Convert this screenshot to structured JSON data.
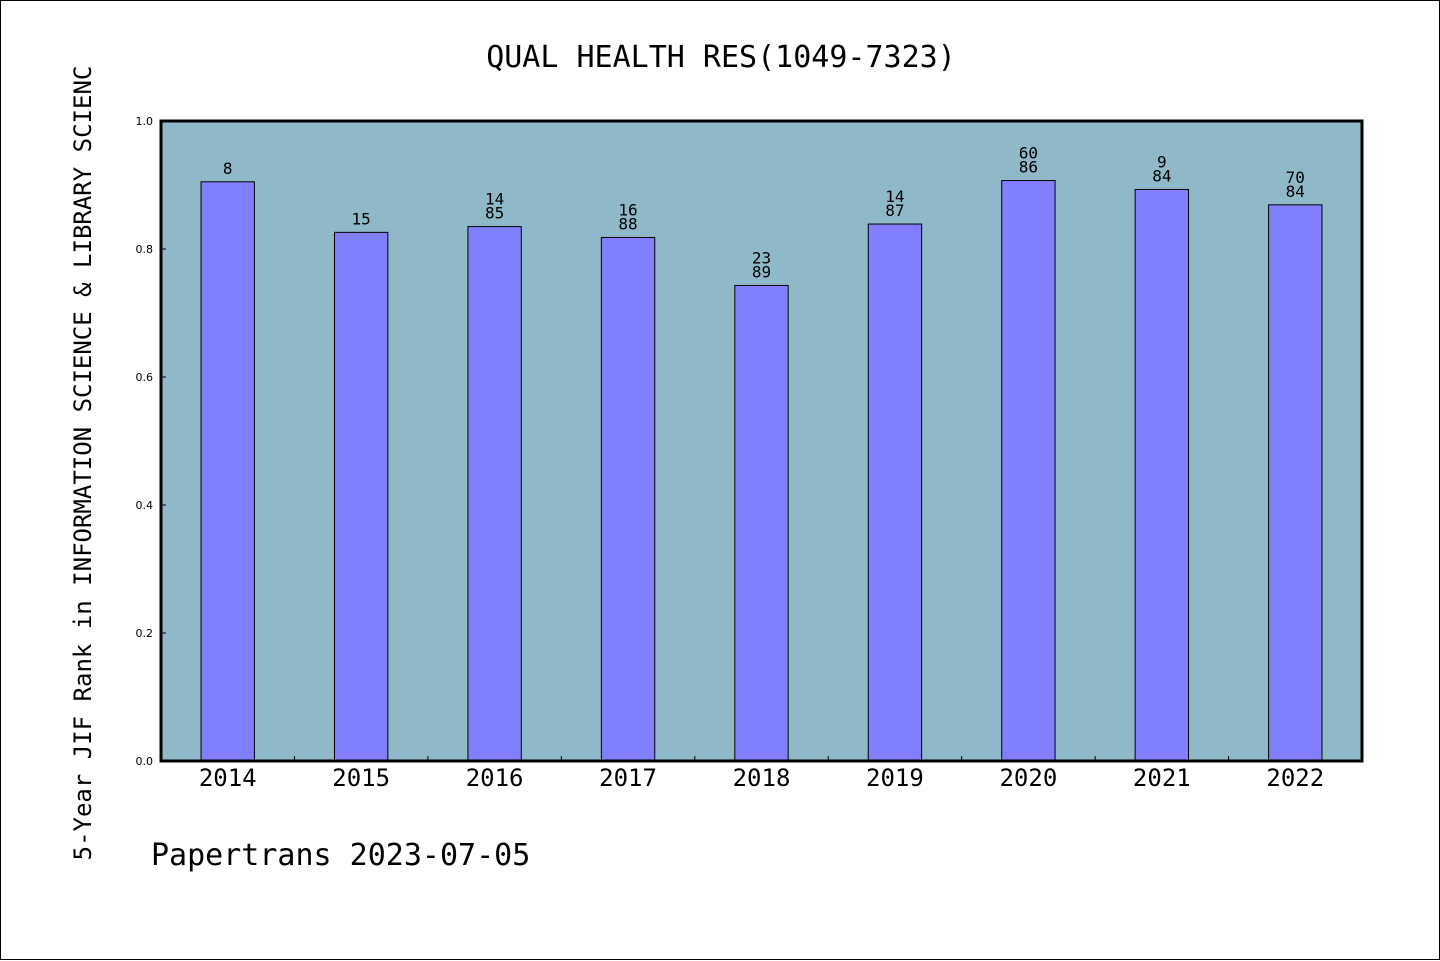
{
  "chart_data": {
    "type": "bar",
    "title": "QUAL HEALTH RES(1049-7323)",
    "ylabel": "5-Year JIF Rank in INFORMATION SCIENCE & LIBRARY SCIENC",
    "xlabel": "",
    "ylim": [
      0.0,
      1.0
    ],
    "yticks": [
      "0.0",
      "0.2",
      "0.4",
      "0.6",
      "0.8",
      "1.0"
    ],
    "categories": [
      "2014",
      "2015",
      "2016",
      "2017",
      "2018",
      "2019",
      "2020",
      "2021",
      "2022"
    ],
    "values": [
      0.905,
      0.826,
      0.835,
      0.818,
      0.743,
      0.839,
      0.907,
      0.893,
      0.869
    ],
    "labels": [
      [
        "8"
      ],
      [
        "15"
      ],
      [
        "14",
        "85"
      ],
      [
        "16",
        "88"
      ],
      [
        "23",
        "89"
      ],
      [
        "14",
        "87"
      ],
      [
        "60",
        "86"
      ],
      [
        "9",
        "84"
      ],
      [
        "70",
        "84"
      ]
    ],
    "grid": false,
    "colors": {
      "plot_background": "#8fb8c8",
      "bar_fill": "#8080ff",
      "bar_stroke": "#000000"
    }
  },
  "footer": {
    "credit": "Papertrans 2023-07-05"
  }
}
